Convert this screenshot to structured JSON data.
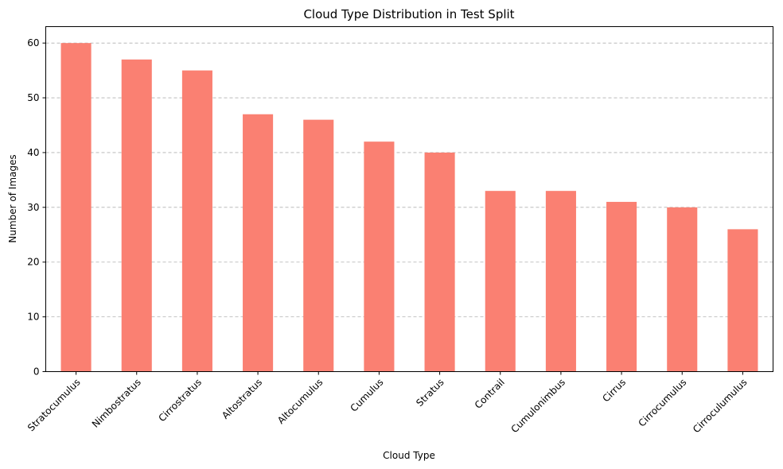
{
  "chart_data": {
    "type": "bar",
    "title": "Cloud Type Distribution in Test Split",
    "xlabel": "Cloud Type",
    "ylabel": "Number of Images",
    "categories": [
      "Stratocumulus",
      "Nimbostratus",
      "Cirrostratus",
      "Altostratus",
      "Altocumulus",
      "Cumulus",
      "Stratus",
      "Contrail",
      "Cumulonimbus",
      "Cirrus",
      "Cirrocumulus",
      "Cirroculumulus"
    ],
    "values": [
      60,
      57,
      55,
      47,
      46,
      42,
      40,
      33,
      33,
      31,
      30,
      26
    ],
    "ylim": [
      0,
      63
    ],
    "yticks": [
      0,
      10,
      20,
      30,
      40,
      50,
      60
    ],
    "grid": "y-dashed",
    "bar_color": "#fa8072",
    "xtick_rotation": 45
  }
}
